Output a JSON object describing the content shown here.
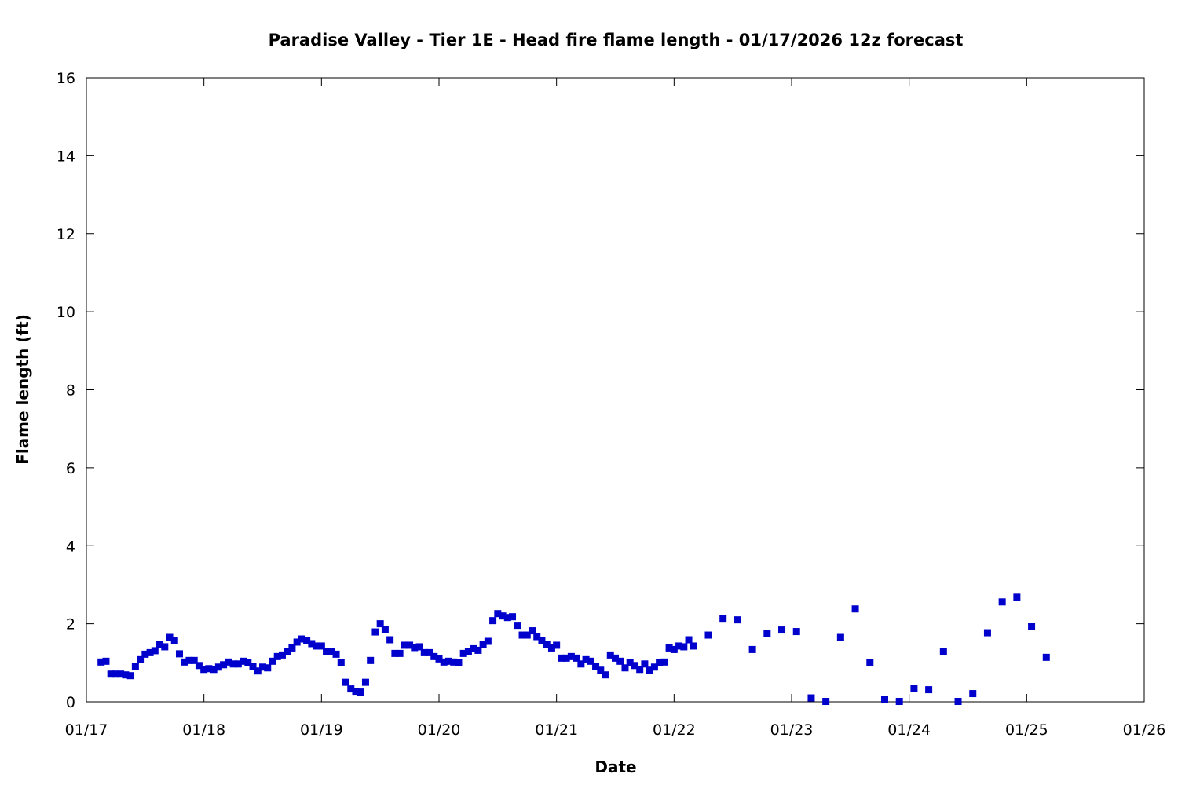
{
  "chart_data": {
    "type": "scatter",
    "title": "Paradise Valley - Tier 1E - Head fire flame length - 01/17/2026 12z forecast",
    "xlabel": "Date",
    "ylabel": "Flame length (ft)",
    "xlim": [
      "2026-01-17T00:00",
      "2026-01-26T00:00"
    ],
    "ylim": [
      0,
      16
    ],
    "x_ticks": [
      "01/17",
      "01/18",
      "01/19",
      "01/20",
      "01/21",
      "01/22",
      "01/23",
      "01/24",
      "01/25",
      "01/26"
    ],
    "y_ticks": [
      "0",
      "2",
      "4",
      "6",
      "8",
      "10",
      "12",
      "14",
      "16"
    ],
    "grid": false,
    "legend": "none",
    "marker_color": "#0000cc",
    "series": [
      {
        "values": [
          [
            "2026-01-17T03:00",
            1.02
          ],
          [
            "2026-01-17T04:00",
            1.04
          ],
          [
            "2026-01-17T05:00",
            0.71
          ],
          [
            "2026-01-17T06:00",
            0.71
          ],
          [
            "2026-01-17T07:00",
            0.71
          ],
          [
            "2026-01-17T08:00",
            0.69
          ],
          [
            "2026-01-17T09:00",
            0.67
          ],
          [
            "2026-01-17T10:00",
            0.91
          ],
          [
            "2026-01-17T11:00",
            1.08
          ],
          [
            "2026-01-17T12:00",
            1.22
          ],
          [
            "2026-01-17T13:00",
            1.26
          ],
          [
            "2026-01-17T14:00",
            1.31
          ],
          [
            "2026-01-17T15:00",
            1.46
          ],
          [
            "2026-01-17T16:00",
            1.41
          ],
          [
            "2026-01-17T17:00",
            1.65
          ],
          [
            "2026-01-17T18:00",
            1.57
          ],
          [
            "2026-01-17T19:00",
            1.23
          ],
          [
            "2026-01-17T20:00",
            1.02
          ],
          [
            "2026-01-17T21:00",
            1.06
          ],
          [
            "2026-01-17T22:00",
            1.06
          ],
          [
            "2026-01-17T23:00",
            0.93
          ],
          [
            "2026-01-18T00:00",
            0.83
          ],
          [
            "2026-01-18T01:00",
            0.85
          ],
          [
            "2026-01-18T02:00",
            0.83
          ],
          [
            "2026-01-18T03:00",
            0.89
          ],
          [
            "2026-01-18T04:00",
            0.95
          ],
          [
            "2026-01-18T05:00",
            1.02
          ],
          [
            "2026-01-18T06:00",
            0.97
          ],
          [
            "2026-01-18T07:00",
            0.97
          ],
          [
            "2026-01-18T08:00",
            1.04
          ],
          [
            "2026-01-18T09:00",
            1.0
          ],
          [
            "2026-01-18T10:00",
            0.91
          ],
          [
            "2026-01-18T11:00",
            0.79
          ],
          [
            "2026-01-18T12:00",
            0.89
          ],
          [
            "2026-01-18T13:00",
            0.87
          ],
          [
            "2026-01-18T14:00",
            1.04
          ],
          [
            "2026-01-18T15:00",
            1.16
          ],
          [
            "2026-01-18T16:00",
            1.2
          ],
          [
            "2026-01-18T17:00",
            1.28
          ],
          [
            "2026-01-18T18:00",
            1.38
          ],
          [
            "2026-01-18T19:00",
            1.53
          ],
          [
            "2026-01-18T20:00",
            1.61
          ],
          [
            "2026-01-18T21:00",
            1.57
          ],
          [
            "2026-01-18T22:00",
            1.49
          ],
          [
            "2026-01-18T23:00",
            1.43
          ],
          [
            "2026-01-19T00:00",
            1.43
          ],
          [
            "2026-01-19T01:00",
            1.28
          ],
          [
            "2026-01-19T02:00",
            1.28
          ],
          [
            "2026-01-19T03:00",
            1.22
          ],
          [
            "2026-01-19T04:00",
            1.0
          ],
          [
            "2026-01-19T05:00",
            0.5
          ],
          [
            "2026-01-19T06:00",
            0.33
          ],
          [
            "2026-01-19T07:00",
            0.27
          ],
          [
            "2026-01-19T08:00",
            0.25
          ],
          [
            "2026-01-19T09:00",
            0.5
          ],
          [
            "2026-01-19T10:00",
            1.06
          ],
          [
            "2026-01-19T11:00",
            1.79
          ],
          [
            "2026-01-19T12:00",
            2.0
          ],
          [
            "2026-01-19T13:00",
            1.86
          ],
          [
            "2026-01-19T14:00",
            1.59
          ],
          [
            "2026-01-19T15:00",
            1.24
          ],
          [
            "2026-01-19T16:00",
            1.24
          ],
          [
            "2026-01-19T17:00",
            1.45
          ],
          [
            "2026-01-19T18:00",
            1.45
          ],
          [
            "2026-01-19T19:00",
            1.39
          ],
          [
            "2026-01-19T20:00",
            1.41
          ],
          [
            "2026-01-19T21:00",
            1.26
          ],
          [
            "2026-01-19T22:00",
            1.26
          ],
          [
            "2026-01-19T23:00",
            1.16
          ],
          [
            "2026-01-20T00:00",
            1.1
          ],
          [
            "2026-01-20T01:00",
            1.02
          ],
          [
            "2026-01-20T02:00",
            1.04
          ],
          [
            "2026-01-20T03:00",
            1.02
          ],
          [
            "2026-01-20T04:00",
            1.0
          ],
          [
            "2026-01-20T05:00",
            1.24
          ],
          [
            "2026-01-20T06:00",
            1.28
          ],
          [
            "2026-01-20T07:00",
            1.36
          ],
          [
            "2026-01-20T08:00",
            1.32
          ],
          [
            "2026-01-20T09:00",
            1.47
          ],
          [
            "2026-01-20T10:00",
            1.55
          ],
          [
            "2026-01-20T11:00",
            2.08
          ],
          [
            "2026-01-20T12:00",
            2.26
          ],
          [
            "2026-01-20T13:00",
            2.2
          ],
          [
            "2026-01-20T14:00",
            2.16
          ],
          [
            "2026-01-20T15:00",
            2.18
          ],
          [
            "2026-01-20T16:00",
            1.96
          ],
          [
            "2026-01-20T17:00",
            1.71
          ],
          [
            "2026-01-20T18:00",
            1.71
          ],
          [
            "2026-01-20T19:00",
            1.82
          ],
          [
            "2026-01-20T20:00",
            1.67
          ],
          [
            "2026-01-20T21:00",
            1.57
          ],
          [
            "2026-01-20T22:00",
            1.47
          ],
          [
            "2026-01-20T23:00",
            1.38
          ],
          [
            "2026-01-21T00:00",
            1.45
          ],
          [
            "2026-01-21T01:00",
            1.12
          ],
          [
            "2026-01-21T02:00",
            1.12
          ],
          [
            "2026-01-21T03:00",
            1.16
          ],
          [
            "2026-01-21T04:00",
            1.12
          ],
          [
            "2026-01-21T05:00",
            0.97
          ],
          [
            "2026-01-21T06:00",
            1.08
          ],
          [
            "2026-01-21T07:00",
            1.04
          ],
          [
            "2026-01-21T08:00",
            0.91
          ],
          [
            "2026-01-21T09:00",
            0.81
          ],
          [
            "2026-01-21T10:00",
            0.69
          ],
          [
            "2026-01-21T11:00",
            1.2
          ],
          [
            "2026-01-21T12:00",
            1.12
          ],
          [
            "2026-01-21T13:00",
            1.04
          ],
          [
            "2026-01-21T14:00",
            0.87
          ],
          [
            "2026-01-21T15:00",
            1.0
          ],
          [
            "2026-01-21T16:00",
            0.93
          ],
          [
            "2026-01-21T17:00",
            0.83
          ],
          [
            "2026-01-21T18:00",
            0.97
          ],
          [
            "2026-01-21T19:00",
            0.81
          ],
          [
            "2026-01-21T20:00",
            0.89
          ],
          [
            "2026-01-21T21:00",
            1.0
          ],
          [
            "2026-01-21T22:00",
            1.02
          ],
          [
            "2026-01-21T23:00",
            1.38
          ],
          [
            "2026-01-22T00:00",
            1.34
          ],
          [
            "2026-01-22T01:00",
            1.43
          ],
          [
            "2026-01-22T02:00",
            1.41
          ],
          [
            "2026-01-22T03:00",
            1.59
          ],
          [
            "2026-01-22T04:00",
            1.43
          ],
          [
            "2026-01-22T07:00",
            1.71
          ],
          [
            "2026-01-22T10:00",
            2.14
          ],
          [
            "2026-01-22T13:00",
            2.1
          ],
          [
            "2026-01-22T16:00",
            1.34
          ],
          [
            "2026-01-22T19:00",
            1.75
          ],
          [
            "2026-01-22T22:00",
            1.84
          ],
          [
            "2026-01-23T01:00",
            1.8
          ],
          [
            "2026-01-23T04:00",
            0.1
          ],
          [
            "2026-01-23T07:00",
            0.01
          ],
          [
            "2026-01-23T10:00",
            1.65
          ],
          [
            "2026-01-23T13:00",
            2.38
          ],
          [
            "2026-01-23T16:00",
            1.0
          ],
          [
            "2026-01-23T19:00",
            0.06
          ],
          [
            "2026-01-23T22:00",
            0.01
          ],
          [
            "2026-01-24T01:00",
            0.35
          ],
          [
            "2026-01-24T04:00",
            0.31
          ],
          [
            "2026-01-24T07:00",
            1.28
          ],
          [
            "2026-01-24T10:00",
            0.01
          ],
          [
            "2026-01-24T13:00",
            0.21
          ],
          [
            "2026-01-24T16:00",
            1.77
          ],
          [
            "2026-01-24T19:00",
            2.56
          ],
          [
            "2026-01-24T22:00",
            2.68
          ],
          [
            "2026-01-25T01:00",
            1.94
          ],
          [
            "2026-01-25T04:00",
            1.14
          ]
        ]
      }
    ]
  }
}
